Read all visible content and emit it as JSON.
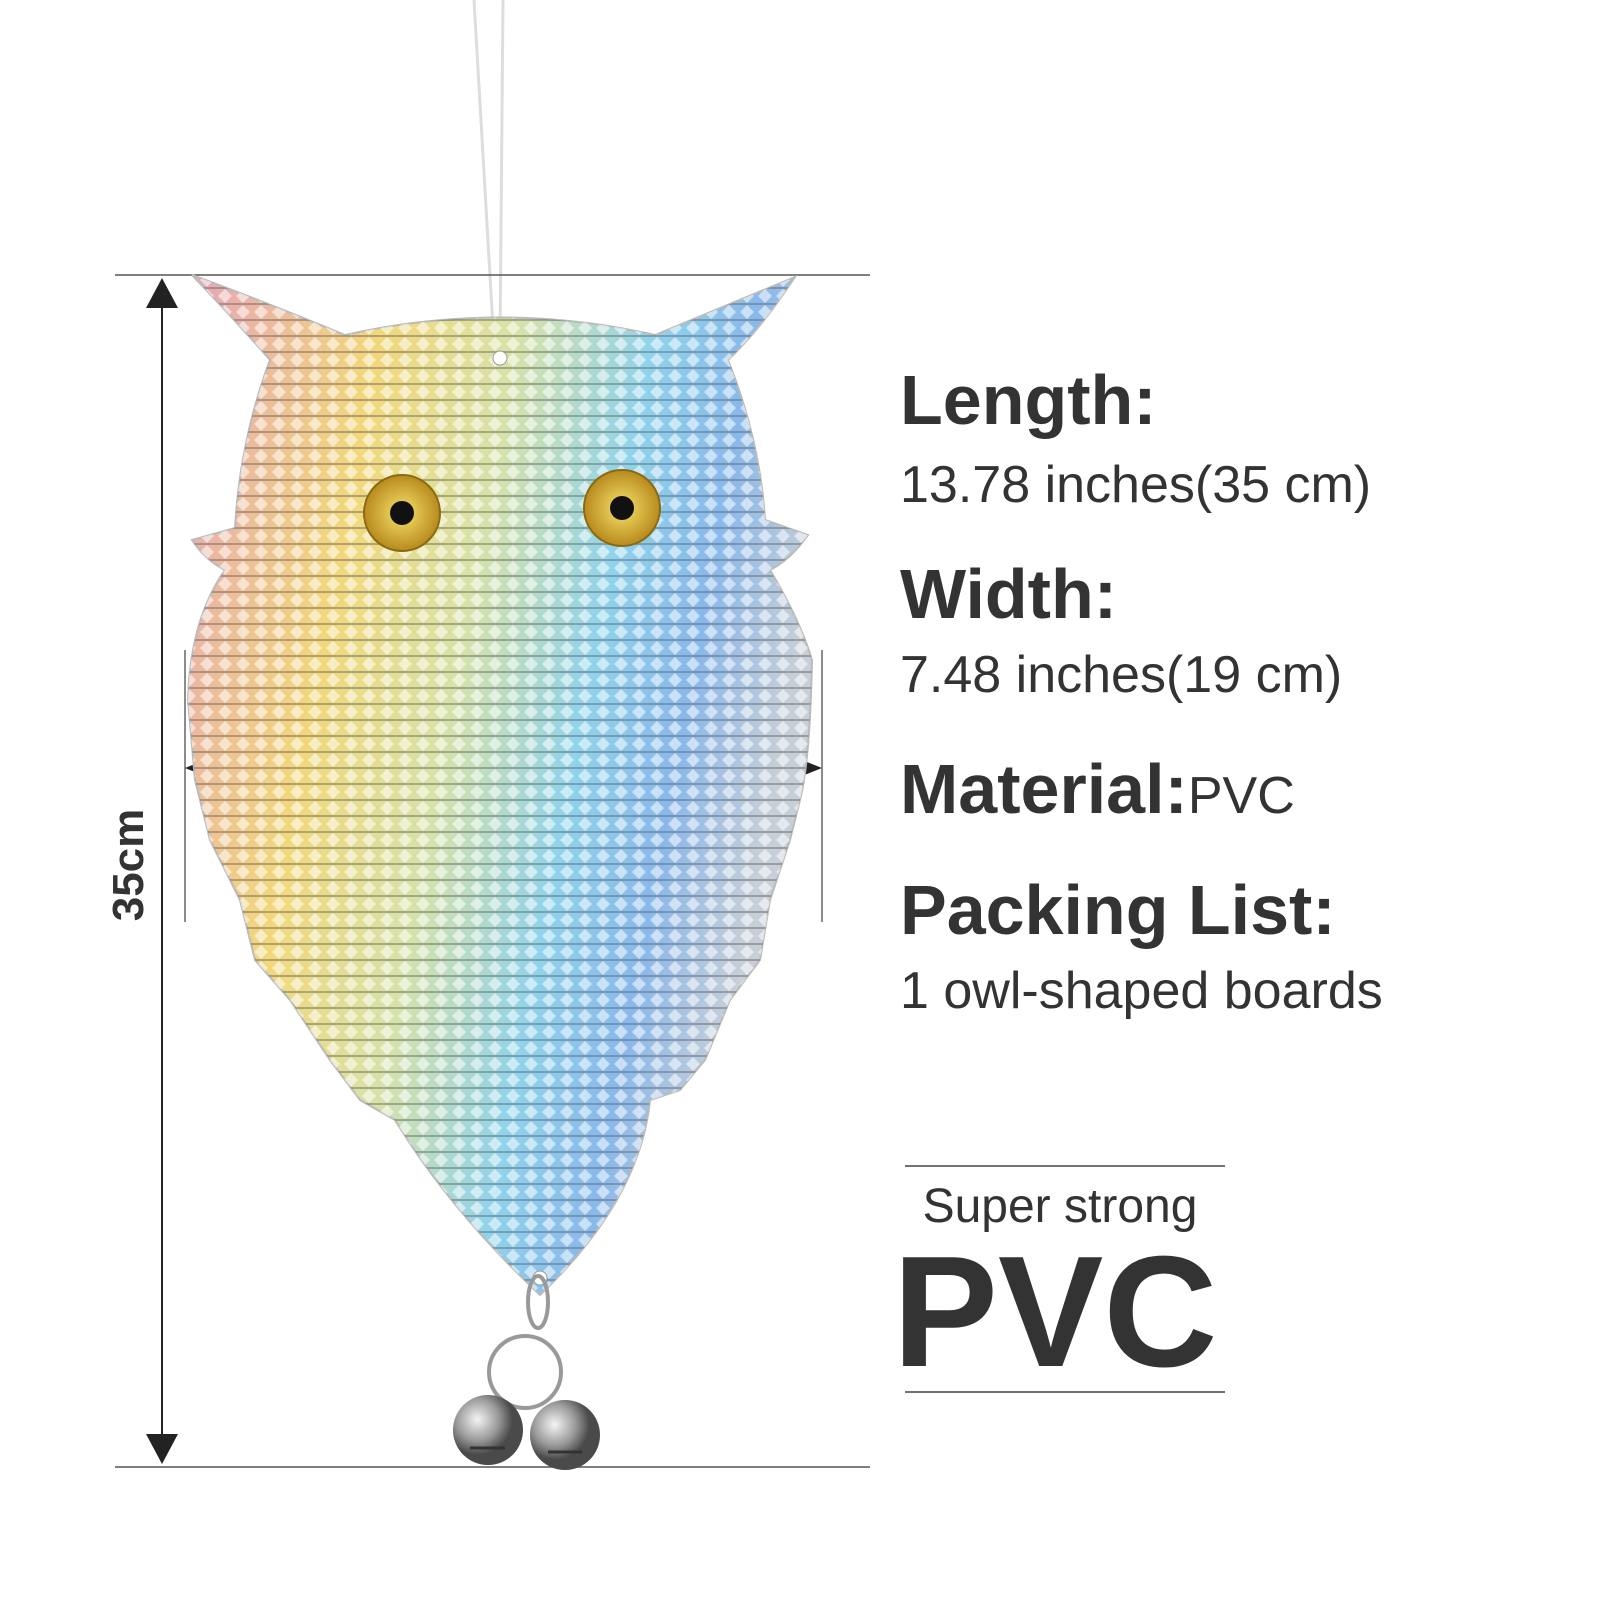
{
  "dimension_label": "35cm",
  "specs": [
    {
      "label": "Length:",
      "value": "13.78 inches(35 cm)"
    },
    {
      "label": "Width:",
      "value": "7.48 inches(19 cm)"
    },
    {
      "label": "Material:",
      "value": "PVC"
    },
    {
      "label": "Packing List:",
      "value": "1 owl-shaped boards"
    }
  ],
  "badge": {
    "subtitle": "Super strong",
    "title": "PVC"
  }
}
